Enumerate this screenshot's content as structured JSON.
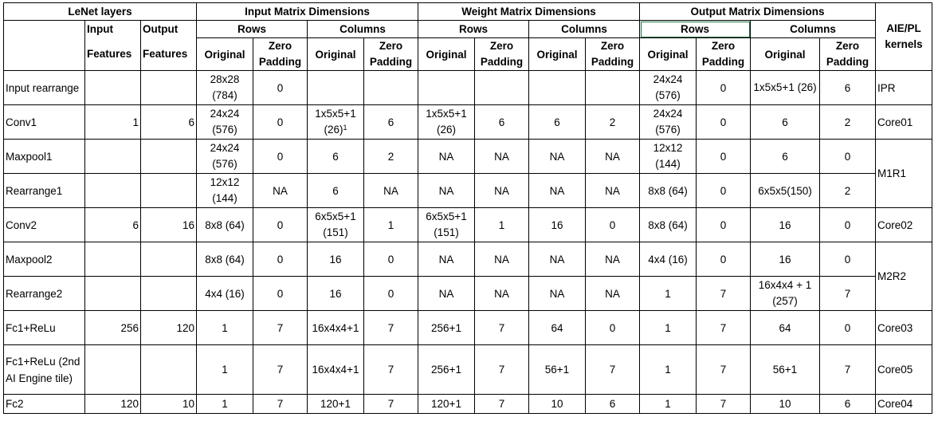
{
  "header": {
    "lenet_layers": "LeNet layers",
    "input_matrix": "Input Matrix Dimensions",
    "weight_matrix": "Weight Matrix Dimensions",
    "output_matrix": "Output Matrix Dimensions",
    "aie_pl_kernels": "AIE/PL kernels",
    "input": "Input",
    "output": "Output",
    "features": "Features",
    "rows": "Rows",
    "columns": "Columns",
    "original": "Original",
    "zero_padding": "Zero Padding"
  },
  "rows": [
    {
      "layer": "Input rearrange",
      "in_feat": "",
      "out_feat": "",
      "in_rows_orig": "28x28 (784)",
      "in_rows_zp": "0",
      "in_cols_orig": "",
      "in_cols_orig_sup": "",
      "in_cols_zp": "",
      "w_rows_orig": "",
      "w_rows_zp": "",
      "w_cols_orig": "",
      "w_cols_zp": "",
      "out_rows_orig": "24x24 (576)",
      "out_rows_zp": "0",
      "out_cols_orig": "1x5x5+1 (26)",
      "out_cols_zp": "6",
      "kernel": "IPR"
    },
    {
      "layer": "Conv1",
      "in_feat": "1",
      "out_feat": "6",
      "in_rows_orig": "24x24 (576)",
      "in_rows_zp": "0",
      "in_cols_orig": "1x5x5+1 (26)",
      "in_cols_orig_sup": "1",
      "in_cols_zp": "6",
      "w_rows_orig": "1x5x5+1 (26)",
      "w_rows_zp": "6",
      "w_cols_orig": "6",
      "w_cols_zp": "2",
      "out_rows_orig": "24x24 (576)",
      "out_rows_zp": "0",
      "out_cols_orig": "6",
      "out_cols_zp": "2",
      "kernel": "Core01"
    },
    {
      "layer": "Maxpool1",
      "in_feat": "",
      "out_feat": "",
      "in_rows_orig": "24x24 (576)",
      "in_rows_zp": "0",
      "in_cols_orig": "6",
      "in_cols_orig_sup": "",
      "in_cols_zp": "2",
      "w_rows_orig": "NA",
      "w_rows_zp": "NA",
      "w_cols_orig": "NA",
      "w_cols_zp": "NA",
      "out_rows_orig": "12x12 (144)",
      "out_rows_zp": "0",
      "out_cols_orig": "6",
      "out_cols_zp": "0",
      "kernel": "M1R1"
    },
    {
      "layer": "Rearrange1",
      "in_feat": "",
      "out_feat": "",
      "in_rows_orig": "12x12 (144)",
      "in_rows_zp": "NA",
      "in_cols_orig": "6",
      "in_cols_orig_sup": "",
      "in_cols_zp": "NA",
      "w_rows_orig": "NA",
      "w_rows_zp": "NA",
      "w_cols_orig": "NA",
      "w_cols_zp": "NA",
      "out_rows_orig": "8x8 (64)",
      "out_rows_zp": "0",
      "out_cols_orig": "6x5x5(150)",
      "out_cols_zp": "2",
      "kernel": ""
    },
    {
      "layer": "Conv2",
      "in_feat": "6",
      "out_feat": "16",
      "in_rows_orig": "8x8 (64)",
      "in_rows_zp": "0",
      "in_cols_orig": "6x5x5+1 (151)",
      "in_cols_orig_sup": "",
      "in_cols_zp": "1",
      "w_rows_orig": "6x5x5+1 (151)",
      "w_rows_zp": "1",
      "w_cols_orig": "16",
      "w_cols_zp": "0",
      "out_rows_orig": "8x8 (64)",
      "out_rows_zp": "0",
      "out_cols_orig": "16",
      "out_cols_zp": "0",
      "kernel": "Core02"
    },
    {
      "layer": "Maxpool2",
      "in_feat": "",
      "out_feat": "",
      "in_rows_orig": "8x8 (64)",
      "in_rows_zp": "0",
      "in_cols_orig": "16",
      "in_cols_orig_sup": "",
      "in_cols_zp": "0",
      "w_rows_orig": "NA",
      "w_rows_zp": "NA",
      "w_cols_orig": "NA",
      "w_cols_zp": "NA",
      "out_rows_orig": "4x4 (16)",
      "out_rows_zp": "0",
      "out_cols_orig": "16",
      "out_cols_zp": "0",
      "kernel": "M2R2"
    },
    {
      "layer": "Rearrange2",
      "in_feat": "",
      "out_feat": "",
      "in_rows_orig": "4x4 (16)",
      "in_rows_zp": "0",
      "in_cols_orig": "16",
      "in_cols_orig_sup": "",
      "in_cols_zp": "0",
      "w_rows_orig": "NA",
      "w_rows_zp": "NA",
      "w_cols_orig": "NA",
      "w_cols_zp": "NA",
      "out_rows_orig": "1",
      "out_rows_zp": "7",
      "out_cols_orig": "16x4x4 + 1 (257)",
      "out_cols_zp": "7",
      "kernel": ""
    },
    {
      "layer": "Fc1+ReLu",
      "in_feat": "256",
      "out_feat": "120",
      "in_rows_orig": "1",
      "in_rows_zp": "7",
      "in_cols_orig": "16x4x4+1",
      "in_cols_orig_sup": "",
      "in_cols_zp": "7",
      "w_rows_orig": "256+1",
      "w_rows_zp": "7",
      "w_cols_orig": "64",
      "w_cols_zp": "0",
      "out_rows_orig": "1",
      "out_rows_zp": "7",
      "out_cols_orig": "64",
      "out_cols_zp": "0",
      "kernel": "Core03"
    },
    {
      "layer": "Fc1+ReLu (2nd AI Engine tile)",
      "in_feat": "",
      "out_feat": "",
      "in_rows_orig": "1",
      "in_rows_zp": "7",
      "in_cols_orig": "16x4x4+1",
      "in_cols_orig_sup": "",
      "in_cols_zp": "7",
      "w_rows_orig": "256+1",
      "w_rows_zp": "7",
      "w_cols_orig": "56+1",
      "w_cols_zp": "7",
      "out_rows_orig": "1",
      "out_rows_zp": "7",
      "out_cols_orig": "56+1",
      "out_cols_zp": "7",
      "kernel": "Core05"
    },
    {
      "layer": "Fc2",
      "in_feat": "120",
      "out_feat": "10",
      "in_rows_orig": "1",
      "in_rows_zp": "7",
      "in_cols_orig": "120+1",
      "in_cols_orig_sup": "",
      "in_cols_zp": "7",
      "w_rows_orig": "120+1",
      "w_rows_zp": "7",
      "w_cols_orig": "10",
      "w_cols_zp": "6",
      "out_rows_orig": "1",
      "out_rows_zp": "7",
      "out_cols_orig": "10",
      "out_cols_zp": "6",
      "kernel": "Core04"
    }
  ]
}
